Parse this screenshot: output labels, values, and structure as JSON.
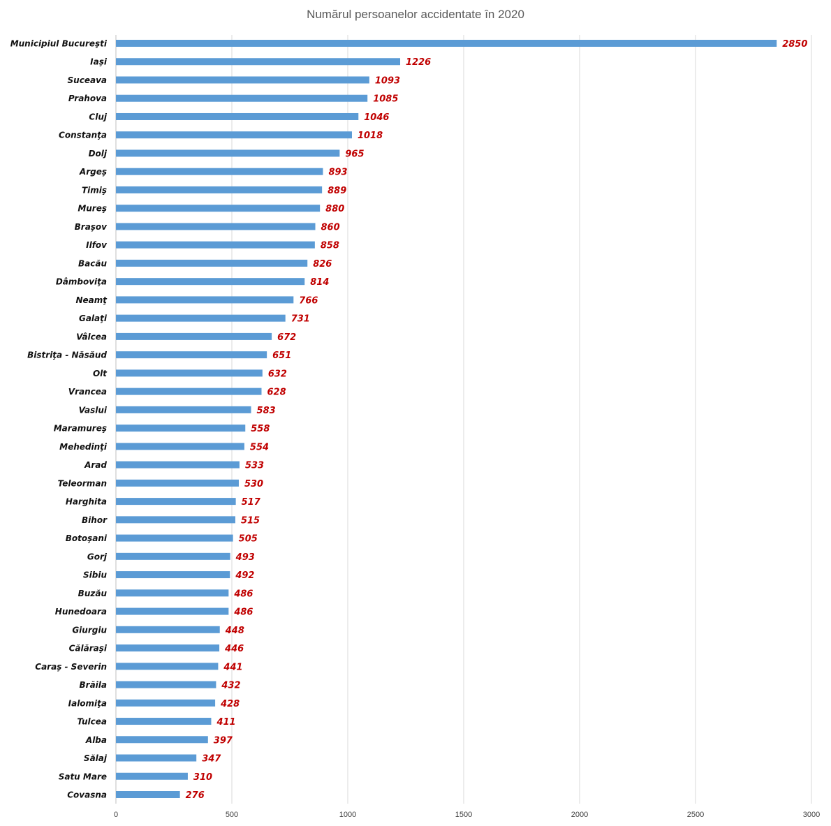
{
  "chart_data": {
    "type": "bar",
    "orientation": "horizontal",
    "title": "Numărul persoanelor accidentate în 2020",
    "xlabel": "",
    "ylabel": "",
    "xlim": [
      0,
      3000
    ],
    "x_ticks": [
      0,
      500,
      1000,
      1500,
      2000,
      2500,
      3000
    ],
    "grid": "vertical",
    "legend": "none",
    "categories": [
      "Municipiul Bucureşti",
      "Iaşi",
      "Suceava",
      "Prahova",
      "Cluj",
      "Constanţa",
      "Dolj",
      "Argeş",
      "Timiş",
      "Mureş",
      "Braşov",
      "Ilfov",
      "Bacău",
      "Dâmboviţa",
      "Neamţ",
      "Galaţi",
      "Vâlcea",
      "Bistriţa - Năsăud",
      "Olt",
      "Vrancea",
      "Vaslui",
      "Maramureş",
      "Mehedinţi",
      "Arad",
      "Teleorman",
      "Harghita",
      "Bihor",
      "Botoşani",
      "Gorj",
      "Sibiu",
      "Buzău",
      "Hunedoara",
      "Giurgiu",
      "Călăraşi",
      "Caraş - Severin",
      "Brăila",
      "Ialomiţa",
      "Tulcea",
      "Alba",
      "Sălaj",
      "Satu  Mare",
      "Covasna"
    ],
    "values": [
      2850,
      1226,
      1093,
      1085,
      1046,
      1018,
      965,
      893,
      889,
      880,
      860,
      858,
      826,
      814,
      766,
      731,
      672,
      651,
      632,
      628,
      583,
      558,
      554,
      533,
      530,
      517,
      515,
      505,
      493,
      492,
      486,
      486,
      448,
      446,
      441,
      432,
      428,
      411,
      397,
      347,
      310,
      276
    ],
    "bar_color": "#5b9bd5",
    "data_label_color": "#c00000"
  }
}
